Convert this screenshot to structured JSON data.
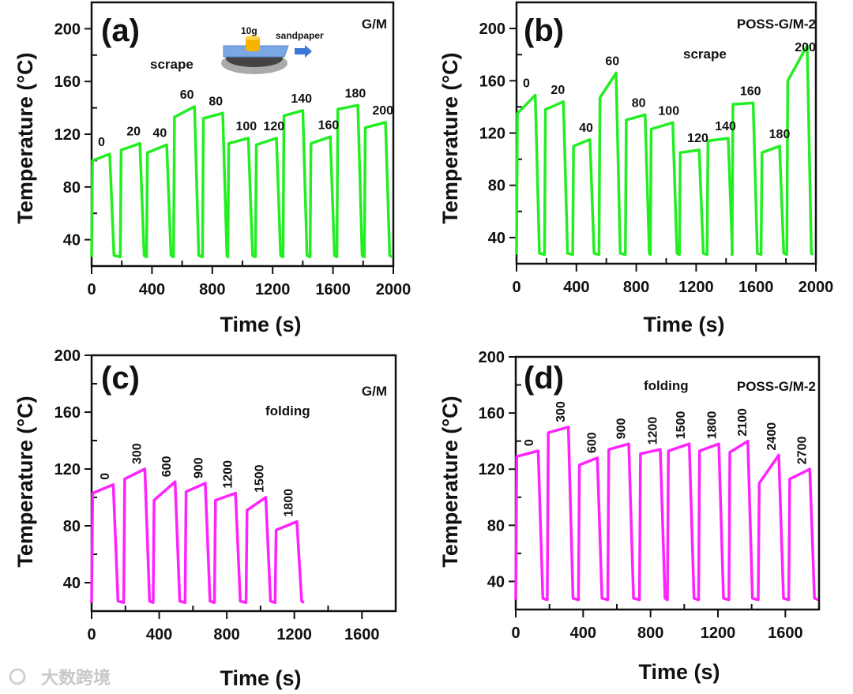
{
  "watermark": "大数跨境",
  "inset": {
    "weight_label": "10g",
    "sandpaper_label": "sandpaper"
  },
  "chart_data": [
    {
      "type": "line",
      "panel": "(a)",
      "material": "G/M",
      "mode": "scrape",
      "xlabel": "Time (s)",
      "ylabel": "Temperature (°C)",
      "xlim": [
        0,
        2000
      ],
      "ylim": [
        20,
        220
      ],
      "xticks": [
        0,
        400,
        800,
        1200,
        1600,
        2000
      ],
      "yticks": [
        40,
        80,
        120,
        160,
        200
      ],
      "color": "#22ee22",
      "baseline": 27,
      "label_orientation": "horizontal",
      "cycles": [
        {
          "label": "0",
          "t_on": 0,
          "t_off": 120,
          "T_on": 100,
          "T_off": 105
        },
        {
          "label": "20",
          "t_on": 190,
          "t_off": 320,
          "T_on": 108,
          "T_off": 113
        },
        {
          "label": "40",
          "t_on": 364,
          "t_off": 498,
          "T_on": 106,
          "T_off": 112
        },
        {
          "label": "60",
          "t_on": 543,
          "t_off": 682,
          "T_on": 133,
          "T_off": 141
        },
        {
          "label": "80",
          "t_on": 735,
          "t_off": 869,
          "T_on": 132,
          "T_off": 136
        },
        {
          "label": "100",
          "t_on": 903,
          "t_off": 1039,
          "T_on": 113,
          "T_off": 117
        },
        {
          "label": "120",
          "t_on": 1086,
          "t_off": 1225,
          "T_on": 112,
          "T_off": 117
        },
        {
          "label": "140",
          "t_on": 1269,
          "t_off": 1400,
          "T_on": 134,
          "T_off": 138
        },
        {
          "label": "160",
          "t_on": 1448,
          "t_off": 1582,
          "T_on": 113,
          "T_off": 118
        },
        {
          "label": "180",
          "t_on": 1626,
          "t_off": 1765,
          "T_on": 139,
          "T_off": 142
        },
        {
          "label": "200",
          "t_on": 1808,
          "t_off": 1948,
          "T_on": 125,
          "T_off": 129
        }
      ],
      "t_end": 1991
    },
    {
      "type": "line",
      "panel": "(b)",
      "material": "POSS-G/M-2",
      "mode": "scrape",
      "xlabel": "Time (s)",
      "ylabel": "Temperature (°C)",
      "xlim": [
        0,
        2000
      ],
      "ylim": [
        20,
        220
      ],
      "xticks": [
        0,
        400,
        800,
        1200,
        1600,
        2000
      ],
      "yticks": [
        40,
        80,
        120,
        160,
        200
      ],
      "color": "#22ee22",
      "baseline": 27,
      "label_orientation": "horizontal",
      "cycles": [
        {
          "label": "0",
          "t_on": 0,
          "t_off": 125,
          "T_on": 135,
          "T_off": 149
        },
        {
          "label": "20",
          "t_on": 187,
          "t_off": 313,
          "T_on": 138,
          "T_off": 144
        },
        {
          "label": "40",
          "t_on": 375,
          "t_off": 490,
          "T_on": 110,
          "T_off": 115
        },
        {
          "label": "60",
          "t_on": 551,
          "t_off": 665,
          "T_on": 147,
          "T_off": 166
        },
        {
          "label": "80",
          "t_on": 727,
          "t_off": 859,
          "T_on": 130,
          "T_off": 134
        },
        {
          "label": "100",
          "t_on": 894,
          "t_off": 1044,
          "T_on": 123,
          "T_off": 128
        },
        {
          "label": "120",
          "t_on": 1088,
          "t_off": 1220,
          "T_on": 105,
          "T_off": 107
        },
        {
          "label": "140",
          "t_on": 1273,
          "t_off": 1414,
          "T_on": 114,
          "T_off": 116
        },
        {
          "label": "160",
          "t_on": 1440,
          "t_off": 1581,
          "T_on": 142,
          "T_off": 143
        },
        {
          "label": "180",
          "t_on": 1634,
          "t_off": 1757,
          "T_on": 105,
          "T_off": 110
        },
        {
          "label": "200",
          "t_on": 1806,
          "t_off": 1942,
          "T_on": 160,
          "T_off": 187
        }
      ],
      "t_end": 1982
    },
    {
      "type": "line",
      "panel": "(c)",
      "material": "G/M",
      "mode": "folding",
      "xlabel": "Time (s)",
      "ylabel": "Temperature (°C)",
      "xlim": [
        0,
        1800
      ],
      "ylim": [
        20,
        200
      ],
      "xticks": [
        0,
        400,
        800,
        1200,
        1600
      ],
      "yticks": [
        40,
        80,
        120,
        160,
        200
      ],
      "color": "#ff22ff",
      "baseline": 26,
      "label_orientation": "vertical",
      "cycles": [
        {
          "label": "0",
          "t_on": 0,
          "t_off": 128,
          "T_on": 103,
          "T_off": 109
        },
        {
          "label": "300",
          "t_on": 190,
          "t_off": 315,
          "T_on": 113,
          "T_off": 120
        },
        {
          "label": "600",
          "t_on": 364,
          "t_off": 494,
          "T_on": 98,
          "T_off": 111
        },
        {
          "label": "900",
          "t_on": 553,
          "t_off": 673,
          "T_on": 104,
          "T_off": 110
        },
        {
          "label": "1200",
          "t_on": 727,
          "t_off": 852,
          "T_on": 98,
          "T_off": 103
        },
        {
          "label": "1500",
          "t_on": 914,
          "t_off": 1031,
          "T_on": 91,
          "T_off": 100
        },
        {
          "label": "1800",
          "t_on": 1086,
          "t_off": 1215,
          "T_on": 77,
          "T_off": 83
        }
      ],
      "t_end": 1257
    },
    {
      "type": "line",
      "panel": "(d)",
      "material": "POSS-G/M-2",
      "mode": "folding",
      "xlabel": "Time (s)",
      "ylabel": "Temperature (°C)",
      "xlim": [
        0,
        1800
      ],
      "ylim": [
        20,
        200
      ],
      "xticks": [
        0,
        400,
        800,
        1200,
        1600
      ],
      "yticks": [
        40,
        80,
        120,
        160,
        200
      ],
      "color": "#ff22ff",
      "baseline": 27,
      "label_orientation": "vertical",
      "cycles": [
        {
          "label": "0",
          "t_on": 0,
          "t_off": 133,
          "T_on": 129,
          "T_off": 133
        },
        {
          "label": "300",
          "t_on": 187,
          "t_off": 312,
          "T_on": 146,
          "T_off": 150
        },
        {
          "label": "600",
          "t_on": 372,
          "t_off": 484,
          "T_on": 123,
          "T_off": 128
        },
        {
          "label": "900",
          "t_on": 546,
          "t_off": 671,
          "T_on": 134,
          "T_off": 138
        },
        {
          "label": "1200",
          "t_on": 734,
          "t_off": 858,
          "T_on": 131,
          "T_off": 134
        },
        {
          "label": "1500",
          "t_on": 900,
          "t_off": 1030,
          "T_on": 133,
          "T_off": 138
        },
        {
          "label": "1800",
          "t_on": 1085,
          "t_off": 1205,
          "T_on": 133,
          "T_off": 138
        },
        {
          "label": "2100",
          "t_on": 1265,
          "t_off": 1377,
          "T_on": 132,
          "T_off": 140
        },
        {
          "label": "2400",
          "t_on": 1439,
          "t_off": 1561,
          "T_on": 110,
          "T_off": 130
        },
        {
          "label": "2700",
          "t_on": 1620,
          "t_off": 1745,
          "T_on": 113,
          "T_off": 120
        }
      ],
      "t_end": 1795
    }
  ]
}
